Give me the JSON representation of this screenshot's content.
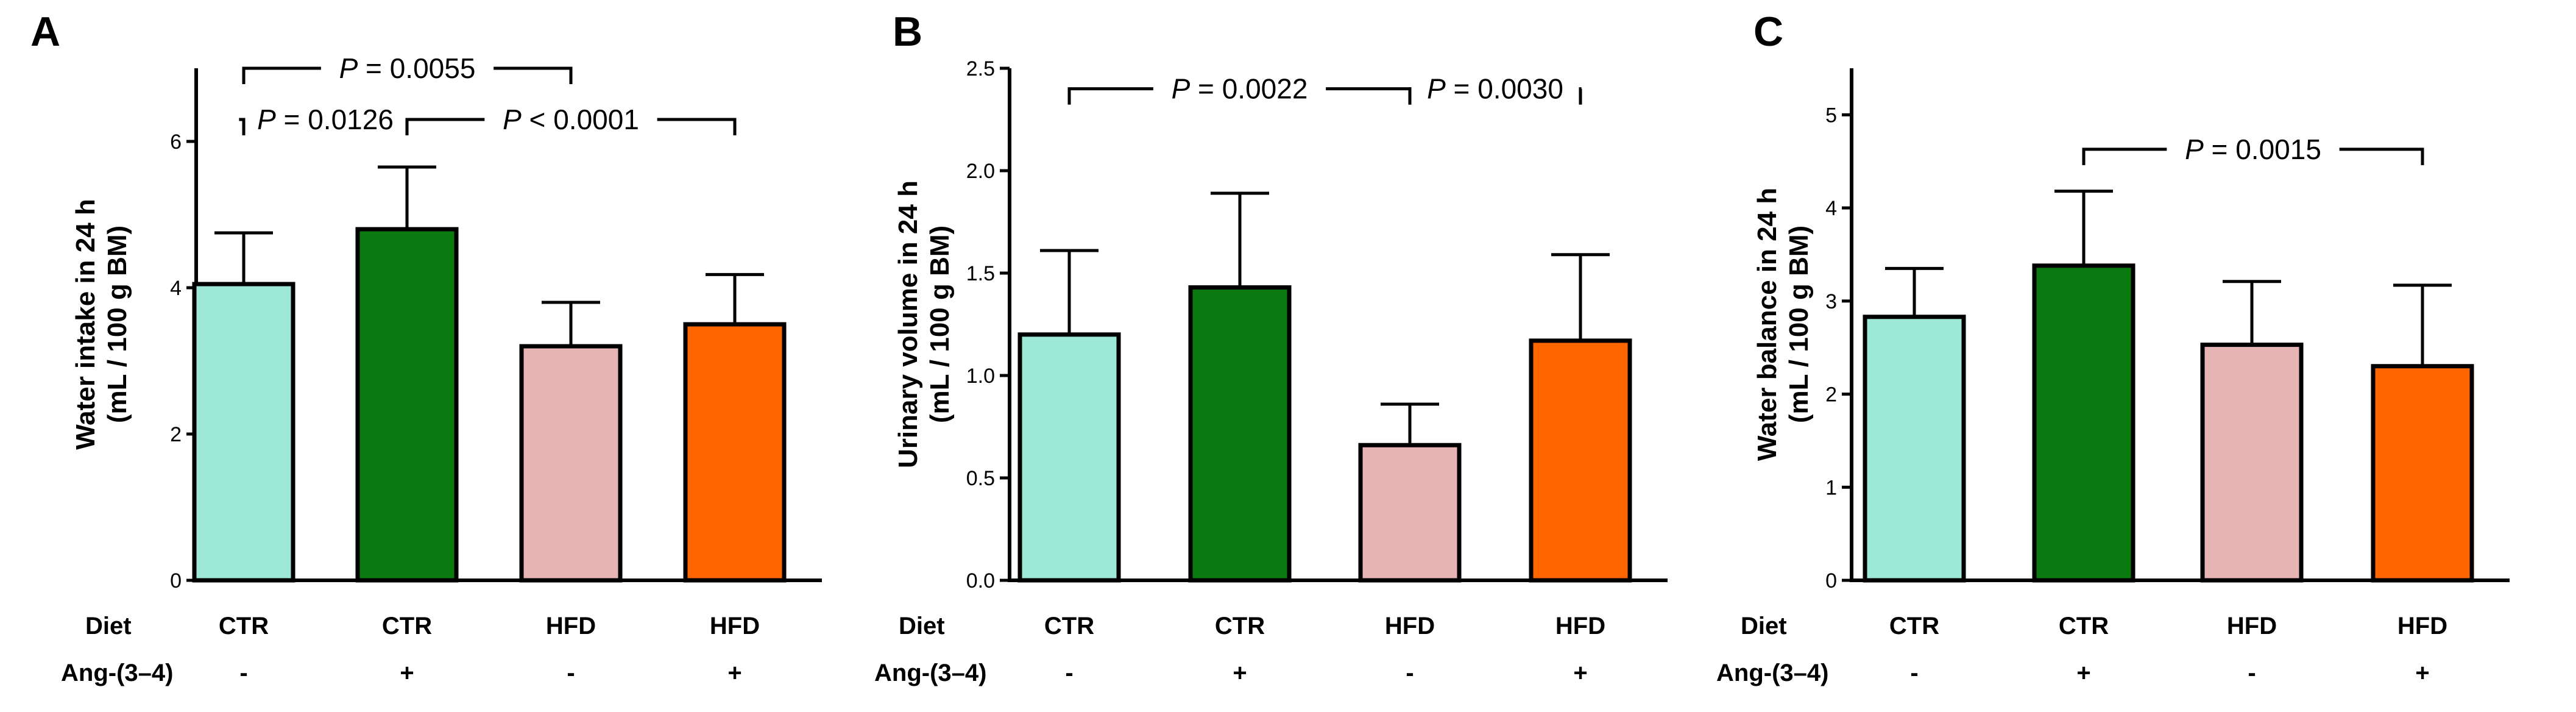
{
  "chart_data": [
    {
      "type": "bar",
      "panel": "A",
      "ylabel_lines": [
        "Water intake in 24 h",
        "(mL / 100 g BM)"
      ],
      "ylim": [
        0,
        7
      ],
      "yticks": [
        0,
        2,
        4,
        6
      ],
      "ytick_labels": [
        "0",
        "2",
        "4",
        "6"
      ],
      "categories": [
        "CTR",
        "CTR",
        "HFD",
        "HFD"
      ],
      "treatment": [
        "-",
        "+",
        "-",
        "+"
      ],
      "values": [
        4.05,
        4.8,
        3.2,
        3.5
      ],
      "errors": [
        0.7,
        0.85,
        0.6,
        0.68
      ],
      "colors": [
        "#9ee8d8",
        "#0a7a10",
        "#e6b4b4",
        "#ff6600"
      ],
      "comparisons": [
        {
          "from": 0,
          "to": 2,
          "y": 7.0,
          "text": " = 0.0055"
        },
        {
          "from": 0,
          "to": 1,
          "y": 6.3,
          "text": " = 0.0126"
        },
        {
          "from": 1,
          "to": 3,
          "y": 6.3,
          "text": " < 0.0001"
        }
      ]
    },
    {
      "type": "bar",
      "panel": "B",
      "ylabel_lines": [
        "Urinary volume in 24 h",
        "(mL / 100 g BM)"
      ],
      "ylim": [
        0,
        2.5
      ],
      "yticks": [
        0,
        0.5,
        1.0,
        1.5,
        2.0,
        2.5
      ],
      "ytick_labels": [
        "0.0",
        "0.5",
        "1.0",
        "1.5",
        "2.0",
        "2.5"
      ],
      "categories": [
        "CTR",
        "CTR",
        "HFD",
        "HFD"
      ],
      "treatment": [
        "-",
        "+",
        "-",
        "+"
      ],
      "values": [
        1.2,
        1.43,
        0.66,
        1.17
      ],
      "errors": [
        0.41,
        0.46,
        0.2,
        0.42
      ],
      "colors": [
        "#9ee8d8",
        "#0a7a10",
        "#e6b4b4",
        "#ff6600"
      ],
      "comparisons": [
        {
          "from": 0,
          "to": 2,
          "y": 2.4,
          "text": " = 0.0022"
        },
        {
          "from": 2,
          "to": 3,
          "y": 2.4,
          "text": " = 0.0030"
        }
      ]
    },
    {
      "type": "bar",
      "panel": "C",
      "ylabel_lines": [
        "Water balance in 24 h",
        "(mL / 100 g BM)"
      ],
      "ylim": [
        0,
        5.5
      ],
      "yticks": [
        0,
        1,
        2,
        3,
        4,
        5
      ],
      "ytick_labels": [
        "0",
        "1",
        "2",
        "3",
        "4",
        "5"
      ],
      "categories": [
        "CTR",
        "CTR",
        "HFD",
        "HFD"
      ],
      "treatment": [
        "-",
        "+",
        "-",
        "+"
      ],
      "values": [
        2.83,
        3.38,
        2.53,
        2.3
      ],
      "errors": [
        0.52,
        0.8,
        0.68,
        0.87
      ],
      "colors": [
        "#9ee8d8",
        "#0a7a10",
        "#e6b4b4",
        "#ff6600"
      ],
      "comparisons": [
        {
          "from": 1,
          "to": 3,
          "y": 4.63,
          "text": " = 0.0015"
        }
      ]
    }
  ],
  "labels": {
    "row_diet": "Diet",
    "row_treatment": "Ang-(3–4)",
    "p_symbol": "P"
  }
}
